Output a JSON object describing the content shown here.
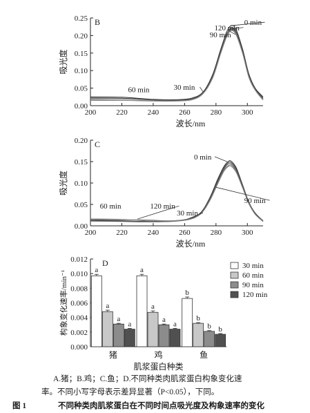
{
  "figure": {
    "caption_lines": [
      "A.猪；B.鸡；C.鱼；D.不同种类肉肌浆蛋白构象变化速",
      "率。不同小写字母表示差异显著（P<0.05），下同。"
    ],
    "fig_label": "图 1",
    "fig_title": "不同种类肉肌浆蛋白在不同时间点吸光度及构象速率的变化"
  },
  "chart_data": [
    {
      "panel": "B",
      "type": "line",
      "xlabel": "波长/nm",
      "ylabel": "吸光度",
      "xlim": [
        200,
        310
      ],
      "ylim": [
        0,
        0.25
      ],
      "xticks": [
        "200",
        "220",
        "240",
        "260",
        "280",
        "300"
      ],
      "yticks": [
        "0.00",
        "0.05",
        "0.10",
        "0.15",
        "0.20",
        "0.25"
      ],
      "series": [
        {
          "name": "0 min",
          "x": [
            200,
            220,
            240,
            255,
            265,
            272,
            278,
            283,
            287,
            290,
            293,
            297,
            301,
            305,
            310
          ],
          "y": [
            0.025,
            0.024,
            0.018,
            0.017,
            0.022,
            0.04,
            0.09,
            0.16,
            0.212,
            0.229,
            0.215,
            0.16,
            0.09,
            0.05,
            0.025
          ]
        },
        {
          "name": "30 min",
          "x": [
            200,
            220,
            240,
            255,
            265,
            272,
            278,
            283,
            287,
            290,
            293,
            297,
            301,
            305,
            310
          ],
          "y": [
            0.022,
            0.021,
            0.017,
            0.016,
            0.02,
            0.038,
            0.086,
            0.155,
            0.205,
            0.223,
            0.209,
            0.155,
            0.086,
            0.048,
            0.022
          ]
        },
        {
          "name": "60 min",
          "x": [
            200,
            220,
            240,
            255,
            265,
            272,
            278,
            283,
            287,
            290,
            293,
            297,
            301,
            305,
            310
          ],
          "y": [
            0.02,
            0.02,
            0.016,
            0.015,
            0.019,
            0.037,
            0.084,
            0.152,
            0.203,
            0.22,
            0.206,
            0.152,
            0.084,
            0.046,
            0.02
          ]
        },
        {
          "name": "90 min",
          "x": [
            200,
            220,
            240,
            255,
            265,
            272,
            278,
            283,
            287,
            290,
            293,
            297,
            301,
            305,
            310
          ],
          "y": [
            0.017,
            0.016,
            0.014,
            0.014,
            0.018,
            0.036,
            0.082,
            0.15,
            0.2,
            0.217,
            0.203,
            0.15,
            0.082,
            0.045,
            0.018
          ]
        },
        {
          "name": "120 min",
          "x": [
            200,
            220,
            240,
            255,
            265,
            272,
            278,
            283,
            287,
            290,
            293,
            297,
            301,
            305,
            310
          ],
          "y": [
            0.015,
            0.015,
            0.013,
            0.013,
            0.017,
            0.035,
            0.08,
            0.148,
            0.198,
            0.214,
            0.2,
            0.148,
            0.08,
            0.044,
            0.016
          ]
        }
      ]
    },
    {
      "panel": "C",
      "type": "line",
      "xlabel": "波长/nm",
      "ylabel": "吸光度",
      "xlim": [
        200,
        310
      ],
      "ylim": [
        0,
        0.2
      ],
      "xticks": [
        "200",
        "220",
        "240",
        "260",
        "280",
        "300"
      ],
      "yticks": [
        "0.00",
        "0.05",
        "0.10",
        "0.15",
        "0.20"
      ],
      "series": [
        {
          "name": "0 min",
          "x": [
            200,
            220,
            235,
            250,
            262,
            270,
            276,
            281,
            285,
            288,
            290,
            293,
            297,
            301,
            305,
            310
          ],
          "y": [
            0.013,
            0.012,
            0.01,
            0.011,
            0.016,
            0.03,
            0.065,
            0.108,
            0.138,
            0.151,
            0.15,
            0.135,
            0.095,
            0.055,
            0.03,
            0.012
          ]
        },
        {
          "name": "30 min",
          "x": [
            200,
            220,
            235,
            250,
            262,
            270,
            276,
            281,
            285,
            288,
            290,
            293,
            297,
            301,
            305,
            310
          ],
          "y": [
            0.012,
            0.011,
            0.01,
            0.01,
            0.015,
            0.029,
            0.063,
            0.105,
            0.135,
            0.148,
            0.147,
            0.132,
            0.093,
            0.054,
            0.029,
            0.011
          ]
        },
        {
          "name": "60 min",
          "x": [
            200,
            220,
            235,
            250,
            262,
            270,
            276,
            281,
            285,
            288,
            290,
            293,
            297,
            301,
            305,
            310
          ],
          "y": [
            0.016,
            0.015,
            0.012,
            0.011,
            0.015,
            0.028,
            0.061,
            0.102,
            0.132,
            0.145,
            0.144,
            0.129,
            0.091,
            0.053,
            0.028,
            0.012
          ]
        },
        {
          "name": "90 min",
          "x": [
            200,
            220,
            235,
            250,
            262,
            270,
            276,
            281,
            285,
            288,
            290,
            293,
            297,
            301,
            305,
            310
          ],
          "y": [
            0.011,
            0.01,
            0.009,
            0.01,
            0.014,
            0.027,
            0.059,
            0.099,
            0.129,
            0.141,
            0.141,
            0.126,
            0.089,
            0.052,
            0.027,
            0.01
          ]
        },
        {
          "name": "120 min",
          "x": [
            200,
            220,
            235,
            250,
            262,
            270,
            276,
            281,
            285,
            288,
            290,
            293,
            297,
            301,
            305,
            310
          ],
          "y": [
            0.015,
            0.014,
            0.014,
            0.012,
            0.015,
            0.027,
            0.058,
            0.097,
            0.127,
            0.139,
            0.138,
            0.124,
            0.088,
            0.051,
            0.027,
            0.011
          ]
        }
      ]
    },
    {
      "panel": "D",
      "type": "bar",
      "xlabel": "肌浆蛋白种类",
      "ylabel": "构象变化速率/min⁻¹",
      "ylim": [
        0,
        0.012
      ],
      "yticks": [
        "0.000",
        "0.002",
        "0.004",
        "0.006",
        "0.008",
        "0.010",
        "0.012"
      ],
      "categories": [
        "猪",
        "鸡",
        "鱼"
      ],
      "series": [
        {
          "name": "30 min",
          "color": "#ffffff",
          "values": [
            0.0097,
            0.0097,
            0.0066
          ],
          "errors": [
            0.0002,
            0.0002,
            0.0002
          ],
          "letters": [
            "a",
            "a",
            "b"
          ]
        },
        {
          "name": "60 min",
          "color": "#c8c8c8",
          "values": [
            0.0048,
            0.0047,
            0.0032
          ],
          "errors": [
            0.0002,
            0.0002,
            0.0001
          ],
          "letters": [
            "a",
            "a",
            "b"
          ]
        },
        {
          "name": "90 min",
          "color": "#8c8c8c",
          "values": [
            0.0031,
            0.003,
            0.0021
          ],
          "errors": [
            0.0001,
            0.0001,
            0.0001
          ],
          "letters": [
            "a",
            "a",
            "b"
          ]
        },
        {
          "name": "120 min",
          "color": "#505050",
          "values": [
            0.0024,
            0.0024,
            0.0017
          ],
          "errors": [
            0.0001,
            0.0001,
            0.0001
          ],
          "letters": [
            "a",
            "a",
            "b"
          ]
        }
      ]
    }
  ]
}
